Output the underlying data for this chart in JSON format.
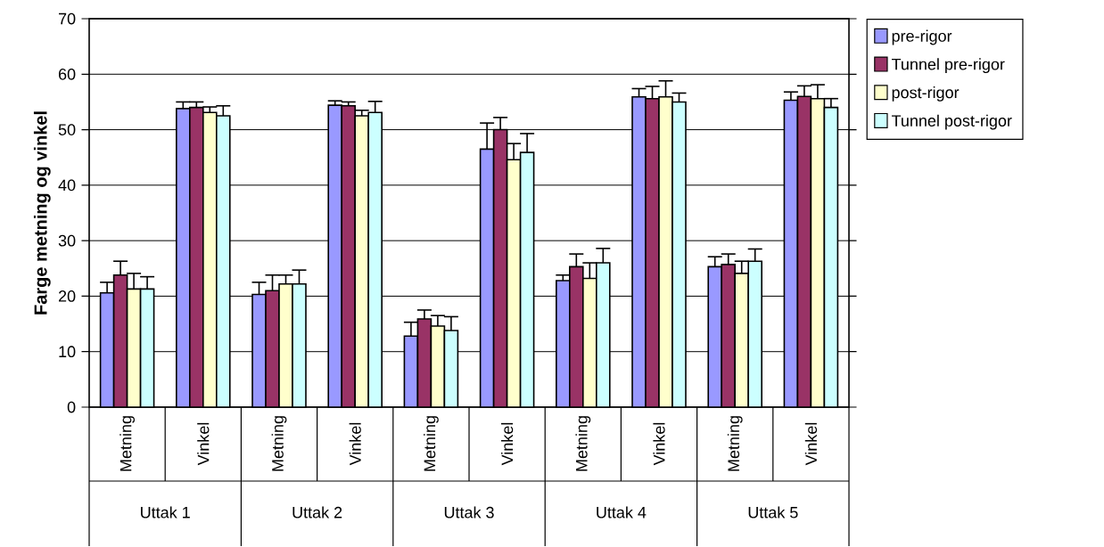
{
  "chart_data": {
    "type": "bar",
    "ylabel": "Farge metning og vinkel",
    "categories": [
      "Metning",
      "Vinkel",
      "Metning",
      "Vinkel",
      "Metning",
      "Vinkel",
      "Metning",
      "Vinkel",
      "Metning",
      "Vinkel"
    ],
    "annotations": [
      "Uttak 1",
      "Uttak 2",
      "Uttak 3",
      "Uttak 4",
      "Uttak 5"
    ],
    "series": [
      {
        "name": "pre-rigor",
        "color": "#9999ff",
        "values": [
          20.6,
          53.8,
          20.3,
          54.4,
          12.8,
          46.5,
          22.8,
          55.9,
          25.3,
          55.3
        ],
        "errors": [
          [
            20.6,
            22.5
          ],
          [
            53.8,
            55.0
          ],
          [
            20.3,
            22.5
          ],
          [
            54.4,
            55.2
          ],
          [
            12.8,
            15.3
          ],
          [
            46.5,
            51.2
          ],
          [
            22.8,
            23.8
          ],
          [
            55.9,
            57.4
          ],
          [
            25.3,
            27.1
          ],
          [
            55.3,
            56.8
          ]
        ]
      },
      {
        "name": "Tunnel pre-rigor",
        "color": "#993366",
        "values": [
          23.8,
          54.0,
          21.0,
          54.3,
          15.9,
          50.0,
          25.3,
          55.6,
          25.7,
          56.0
        ],
        "errors": [
          [
            23.8,
            26.3
          ],
          [
            54.0,
            55.0
          ],
          [
            21.0,
            23.8
          ],
          [
            54.3,
            55.0
          ],
          [
            15.9,
            17.5
          ],
          [
            50.0,
            52.2
          ],
          [
            25.3,
            27.6
          ],
          [
            55.6,
            57.8
          ],
          [
            25.7,
            27.6
          ],
          [
            56.0,
            57.9
          ]
        ]
      },
      {
        "name": "post-rigor",
        "color": "#ffffcc",
        "values": [
          21.3,
          53.1,
          22.2,
          52.5,
          14.6,
          44.6,
          23.2,
          55.9,
          24.1,
          55.6
        ],
        "errors": [
          [
            21.3,
            24.1
          ],
          [
            53.1,
            54.1
          ],
          [
            22.2,
            23.8
          ],
          [
            52.5,
            53.5
          ],
          [
            14.6,
            16.5
          ],
          [
            44.6,
            47.5
          ],
          [
            23.2,
            26.0
          ],
          [
            55.9,
            58.8
          ],
          [
            24.1,
            26.3
          ],
          [
            55.6,
            58.1
          ]
        ]
      },
      {
        "name": "Tunnel post-rigor",
        "color": "#ccffff",
        "values": [
          21.3,
          52.5,
          22.2,
          53.1,
          13.8,
          45.9,
          26.0,
          55.0,
          26.3,
          54.0
        ],
        "errors": [
          [
            21.3,
            23.5
          ],
          [
            52.5,
            54.3
          ],
          [
            22.2,
            24.7
          ],
          [
            53.1,
            55.1
          ],
          [
            13.8,
            16.3
          ],
          [
            45.9,
            49.3
          ],
          [
            26.0,
            28.6
          ],
          [
            55.0,
            56.6
          ],
          [
            26.3,
            28.5
          ],
          [
            54.0,
            55.6
          ]
        ]
      }
    ],
    "ylim": [
      0,
      70
    ],
    "yticks": [
      0,
      10,
      20,
      30,
      40,
      50,
      60,
      70
    ],
    "grid": "y",
    "legend": "top right"
  }
}
